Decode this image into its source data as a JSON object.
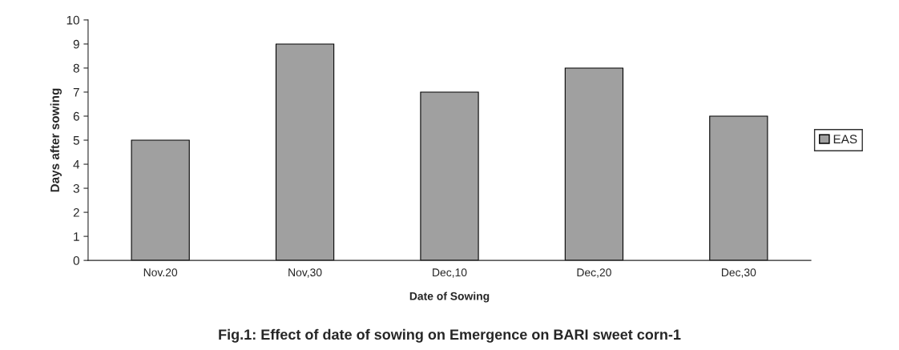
{
  "chart_data": {
    "type": "bar",
    "title": "Fig.1: Effect of date of sowing on Emergence on BARI sweet corn-1",
    "xlabel": "Date of Sowing",
    "ylabel": "Days after sowing",
    "categories": [
      "Nov.20",
      "Nov,30",
      "Dec,10",
      "Dec,20",
      "Dec,30"
    ],
    "series": [
      {
        "name": "EAS",
        "color": "#a0a0a0",
        "values": [
          5,
          9,
          7,
          8,
          6
        ]
      }
    ],
    "ylim": [
      0,
      10
    ],
    "yticks": [
      0,
      1,
      2,
      3,
      4,
      5,
      6,
      7,
      8,
      9,
      10
    ],
    "grid": false,
    "legend": "right"
  }
}
